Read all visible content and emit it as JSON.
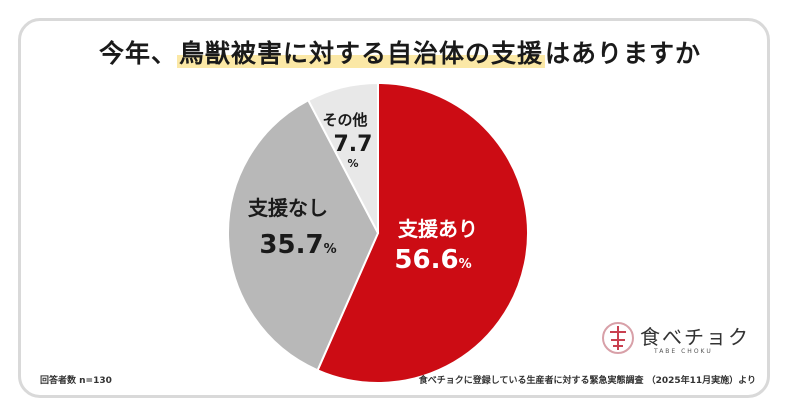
{
  "title": {
    "prefix": "今年、",
    "highlight": "鳥獣被害に対する自治体の支援",
    "suffix": "はありますか"
  },
  "colors": {
    "support_yes": "#cc0c14",
    "support_no": "#b8b8b8",
    "other": "#e8e8e8"
  },
  "chart_data": {
    "type": "pie",
    "title": "今年、鳥獣被害に対する自治体の支援はありますか",
    "unit": "%",
    "slices": [
      {
        "label": "支援あり",
        "value": 56.6
      },
      {
        "label": "支援なし",
        "value": 35.7
      },
      {
        "label": "その他",
        "value": 7.7
      }
    ]
  },
  "footer": {
    "respondents": "回答者数 n=130",
    "source": "食べチョクに登録している生産者に対する緊急実態調査 （2025年11月実施）より"
  },
  "logo": {
    "name": "食べチョク",
    "sub": "TABE CHOKU"
  }
}
